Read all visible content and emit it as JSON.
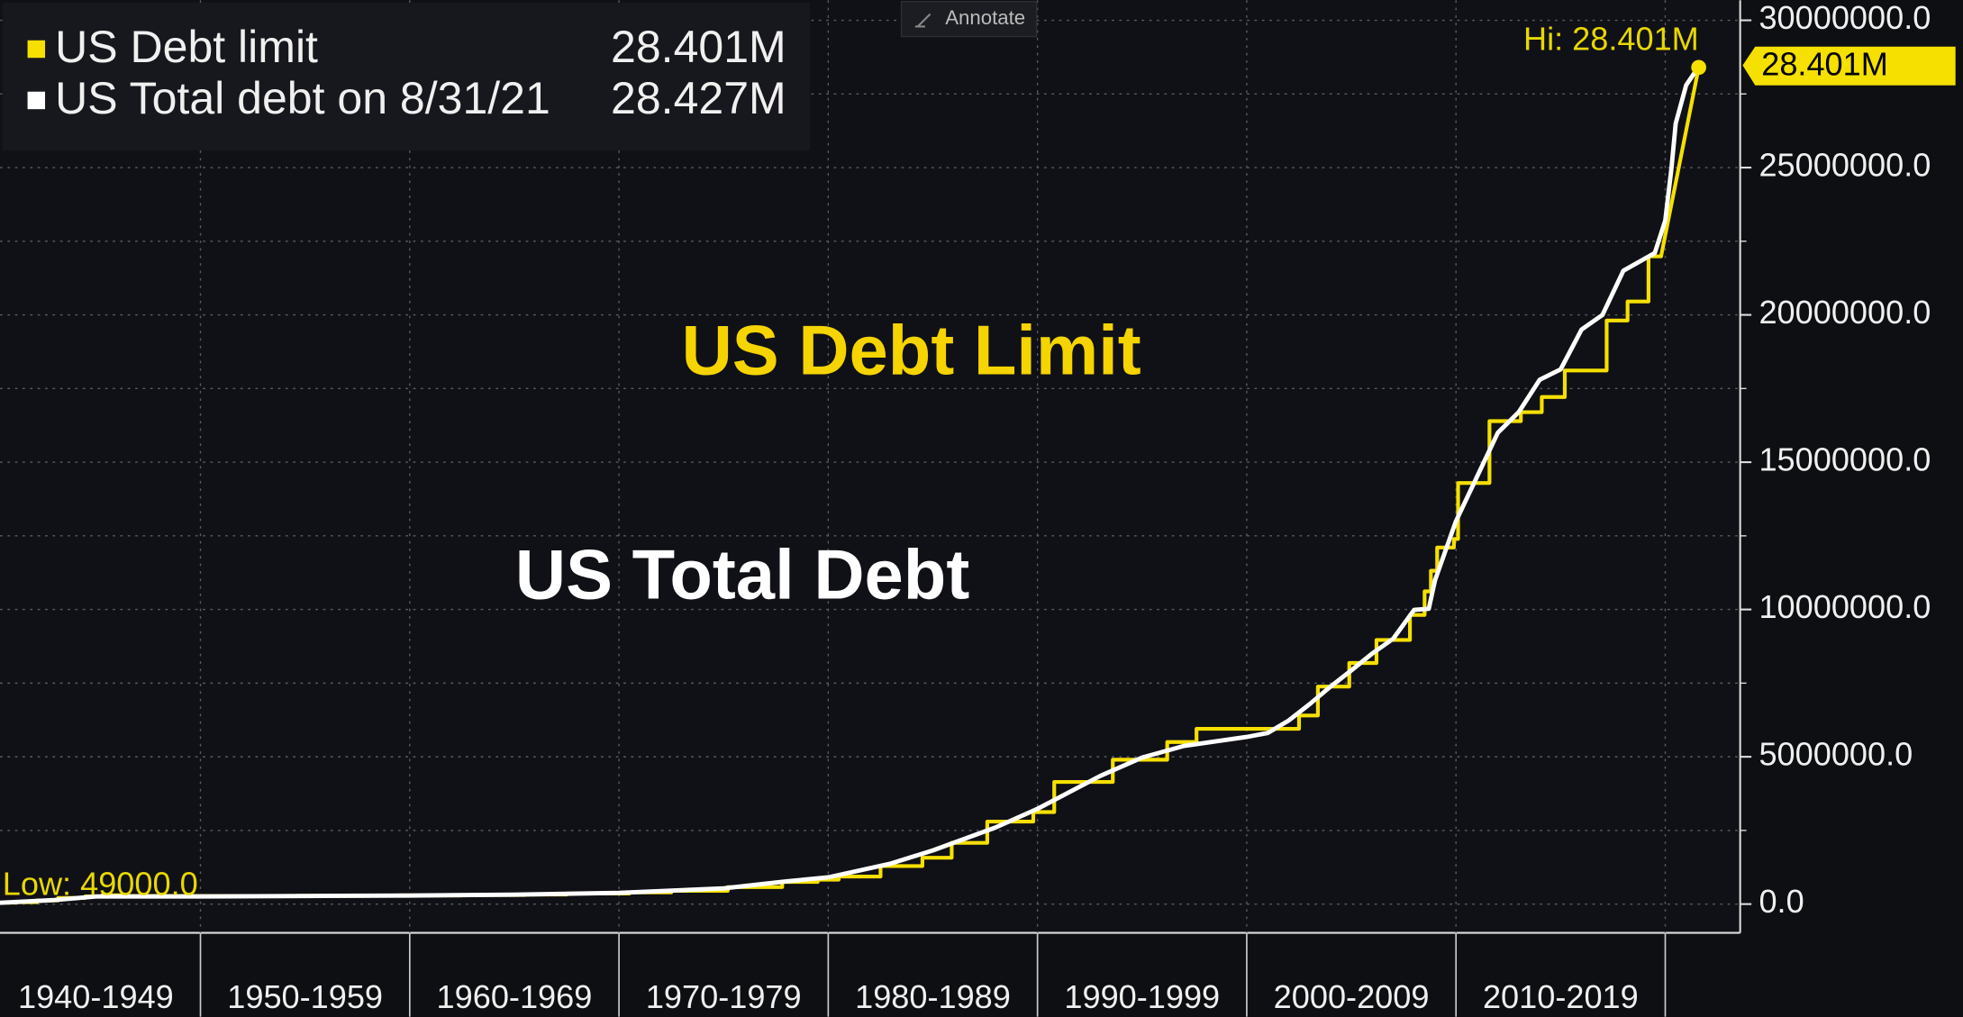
{
  "chart_data": {
    "type": "line",
    "legend": {
      "position": "top-left"
    },
    "annotate_button": "Annotate",
    "annotations": [
      {
        "text": "US Debt Limit",
        "color": "#f5d400"
      },
      {
        "text": "US Total Debt",
        "color": "#ffffff"
      }
    ],
    "hi_label": "Hi: 28.401M",
    "low_label": "Low: 49000.0",
    "last_value_tag": "28.401M",
    "xlim": [
      1940.42,
      2023.58
    ],
    "xticks": [
      {
        "value": 1940,
        "label": "1940-1949"
      },
      {
        "value": 1950,
        "label": "1950-1959"
      },
      {
        "value": 1960,
        "label": "1960-1969"
      },
      {
        "value": 1970,
        "label": "1970-1979"
      },
      {
        "value": 1980,
        "label": "1980-1989"
      },
      {
        "value": 1990,
        "label": "1990-1999"
      },
      {
        "value": 2000,
        "label": "2000-2009"
      },
      {
        "value": 2010,
        "label": "2010-2019"
      },
      2020
    ],
    "ylim": [
      -977000,
      30680000
    ],
    "yticks": [
      {
        "value": 0,
        "label": "0.0"
      },
      {
        "value": 5000000,
        "label": "5000000.0"
      },
      {
        "value": 10000000,
        "label": "10000000.0"
      },
      {
        "value": 15000000,
        "label": "15000000.0"
      },
      {
        "value": 20000000,
        "label": "20000000.0"
      },
      {
        "value": 25000000,
        "label": "25000000.0"
      },
      {
        "value": 30000000,
        "label": "30000000.0"
      }
    ],
    "minor_yticks": [
      2500000,
      7500000,
      12500000,
      17500000,
      22500000,
      27500000
    ],
    "grid": true,
    "series": [
      {
        "name": "US Debt limit",
        "legend_value": "28.401M",
        "color": "#f5e000",
        "x": [
          1940.4,
          1941.2,
          1941.2,
          1942.2,
          1942.2,
          1943.2,
          1943.2,
          1944.5,
          1944.5,
          1945.3,
          1945.3,
          1946.5,
          1946.5,
          1954.6,
          1954.6,
          1956.5,
          1956.5,
          1958.1,
          1958.1,
          1959.5,
          1959.5,
          1962.5,
          1962.5,
          1965.5,
          1965.5,
          1967.5,
          1967.5,
          1970.5,
          1970.5,
          1972.5,
          1972.5,
          1975.2,
          1975.2,
          1977.8,
          1977.8,
          1979.5,
          1979.5,
          1980.5,
          1980.5,
          1982.5,
          1982.5,
          1984.5,
          1984.5,
          1985.9,
          1985.9,
          1987.6,
          1987.6,
          1989.8,
          1989.8,
          1990.8,
          1990.8,
          1993.6,
          1993.6,
          1996.2,
          1996.2,
          1997.6,
          1997.6,
          2002.5,
          2002.5,
          2003.4,
          2003.4,
          2004.9,
          2004.9,
          2006.2,
          2006.2,
          2007.8,
          2007.8,
          2008.5,
          2008.5,
          2008.8,
          2008.8,
          2009.1,
          2009.1,
          2009.9,
          2009.9,
          2010.1,
          2010.1,
          2011.6,
          2011.6,
          2013.1,
          2013.1,
          2014.1,
          2014.1,
          2015.2,
          2015.2,
          2017.2,
          2017.2,
          2018.2,
          2018.2,
          2019.2,
          2019.2,
          2019.8,
          2021.6
        ],
        "values": [
          49000,
          49000,
          65000,
          65000,
          125000,
          125000,
          210000,
          210000,
          260000,
          260000,
          300000,
          300000,
          275000,
          275000,
          281000,
          281000,
          278000,
          278000,
          288000,
          288000,
          295000,
          295000,
          308000,
          308000,
          324000,
          324000,
          358000,
          358000,
          395000,
          395000,
          450000,
          450000,
          577000,
          577000,
          752000,
          752000,
          830000,
          830000,
          935000,
          935000,
          1290000,
          1290000,
          1573000,
          1573000,
          2079000,
          2079000,
          2800000,
          2800000,
          3123000,
          3123000,
          4145000,
          4145000,
          4900000,
          4900000,
          5500000,
          5500000,
          5950000,
          5950000,
          6400000,
          6400000,
          7384000,
          7384000,
          8184000,
          8184000,
          8965000,
          8965000,
          9815000,
          9815000,
          10615000,
          10615000,
          11315000,
          11315000,
          12104000,
          12104000,
          12394000,
          12394000,
          14294000,
          14294000,
          16394000,
          16394000,
          16699000,
          16699000,
          17212000,
          17212000,
          18113000,
          18113000,
          19809000,
          19809000,
          20456000,
          20456000,
          21988000,
          21988000,
          28401000
        ]
      },
      {
        "name": "US Total debt on 8/31/21",
        "legend_value": "28.427M",
        "color": "#ffffff",
        "x": [
          1940.4,
          1943,
          1945,
          1950,
          1955,
          1960,
          1965,
          1970,
          1975,
          1978,
          1980,
          1983,
          1985,
          1988,
          1990,
          1993,
          1995,
          1997,
          2000,
          2001,
          2002,
          2003,
          2004,
          2005,
          2006,
          2007,
          2008,
          2008.7,
          2009,
          2010,
          2011,
          2012,
          2013,
          2014,
          2015,
          2016,
          2017,
          2018,
          2019.5,
          2020,
          2020.3,
          2020.5,
          2021,
          2021.6
        ],
        "values": [
          43000,
          137000,
          259000,
          257000,
          274000,
          290000,
          320000,
          380000,
          533000,
          772000,
          908000,
          1377000,
          1823000,
          2602000,
          3233000,
          4351000,
          4974000,
          5369000,
          5674000,
          5807000,
          6228000,
          6783000,
          7379000,
          7933000,
          8507000,
          9008000,
          9986000,
          10025000,
          11000000,
          13000000,
          14500000,
          16000000,
          16700000,
          17800000,
          18150000,
          19500000,
          20000000,
          21500000,
          22100000,
          23200000,
          25000000,
          26500000,
          27800000,
          28427000
        ]
      }
    ]
  }
}
